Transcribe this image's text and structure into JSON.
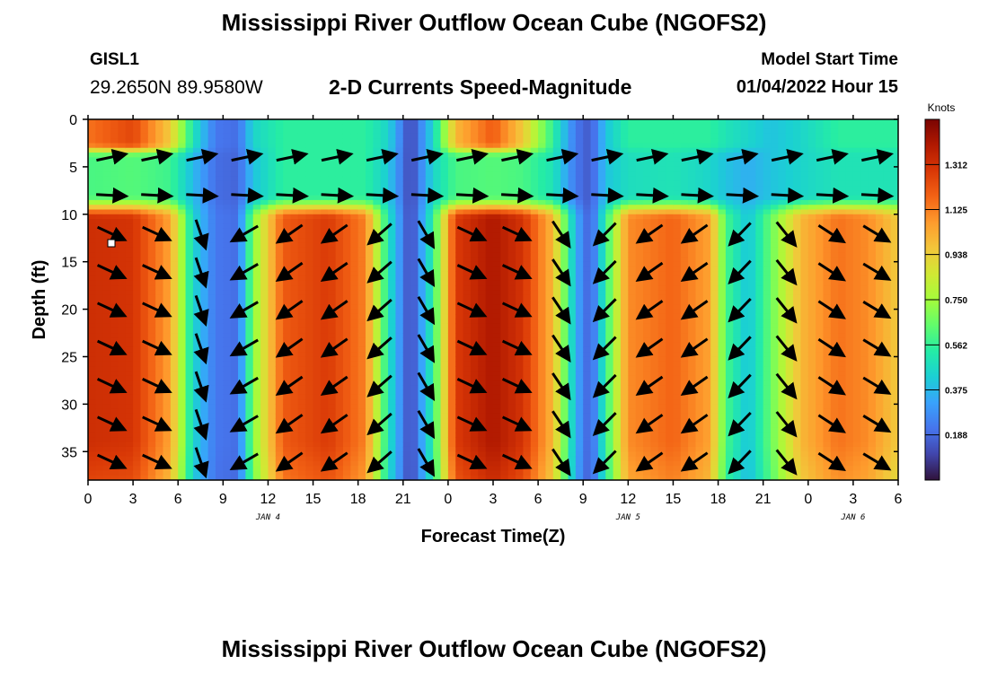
{
  "header": {
    "title": "Mississippi River Outflow Ocean Cube (NGOFS2)",
    "station_id": "GISL1",
    "station_coords": "29.2650N  89.9580W",
    "model_start_label": "Model Start Time",
    "model_start_value": "01/04/2022 Hour 15"
  },
  "footer": {
    "title": "Mississippi River Outflow Ocean Cube (NGOFS2)"
  },
  "colors": {
    "arrow": "#000000",
    "colormap": [
      "#30123b",
      "#4145ab",
      "#4675ed",
      "#39a2fc",
      "#1bcfd4",
      "#24eca6",
      "#61fc6c",
      "#a4fc3b",
      "#d1e834",
      "#f3c63a",
      "#fe9b2d",
      "#f36315",
      "#d93806",
      "#b11901",
      "#7a0402"
    ]
  },
  "chart_data": {
    "type": "heatmap",
    "title": "2-D Currents Speed-Magnitude",
    "xlabel": "Forecast Time(Z)",
    "ylabel": "Depth (ft)",
    "colorbar_label": "Knots",
    "x_ticks": [
      "0",
      "3",
      "6",
      "9",
      "12",
      "15",
      "18",
      "21",
      "0",
      "3",
      "6",
      "9",
      "12",
      "15",
      "18",
      "21",
      "0",
      "3",
      "6"
    ],
    "x_range_hours": [
      0,
      54
    ],
    "date_labels": [
      {
        "text": "JAN 4",
        "hour": 12
      },
      {
        "text": "JAN 5",
        "hour": 36
      },
      {
        "text": "JAN 6",
        "hour": 51
      }
    ],
    "ylim": [
      0,
      38
    ],
    "y_inverted": true,
    "y_ticks": [
      0,
      5,
      10,
      15,
      20,
      25,
      30,
      35
    ],
    "colorbar_range": [
      0.0,
      1.5
    ],
    "colorbar_ticks": [
      "0.188",
      "0.375",
      "0.562",
      "0.750",
      "0.938",
      "1.125",
      "1.312"
    ],
    "vector_rows_depth_ft": [
      4,
      8,
      12,
      16,
      20,
      24,
      28,
      32,
      36
    ],
    "vector_columns_hour": [
      0,
      3,
      6,
      9,
      12,
      15,
      18,
      21,
      24,
      27,
      30,
      33,
      36,
      39,
      42,
      45,
      48,
      51
    ],
    "speed_profile": {
      "hours": [
        0,
        3,
        5.5,
        7,
        8.5,
        10,
        11,
        13,
        16,
        18.5,
        20,
        21.5,
        23,
        24.5,
        27,
        29,
        31,
        32.5,
        33.5,
        34.5,
        36,
        39,
        41.5,
        42.5,
        44,
        45.5,
        47.5,
        50,
        52,
        54
      ],
      "deep_layer_knots": [
        1.32,
        1.3,
        1.05,
        0.45,
        0.22,
        0.2,
        0.7,
        1.2,
        1.28,
        1.12,
        0.5,
        0.1,
        0.55,
        1.28,
        1.4,
        1.3,
        1.0,
        0.35,
        0.15,
        0.55,
        1.1,
        1.18,
        1.05,
        0.6,
        0.4,
        0.65,
        1.0,
        1.15,
        1.1,
        0.95
      ],
      "surface_layer_knots": [
        1.15,
        1.25,
        0.95,
        0.5,
        0.22,
        0.2,
        0.45,
        0.55,
        0.55,
        0.55,
        0.45,
        0.1,
        0.45,
        1.0,
        1.2,
        0.95,
        0.55,
        0.22,
        0.15,
        0.4,
        0.55,
        0.55,
        0.55,
        0.5,
        0.45,
        0.4,
        0.45,
        0.55,
        0.55,
        0.55
      ],
      "mid_layer_knots": [
        0.6,
        0.62,
        0.58,
        0.38,
        0.2,
        0.18,
        0.4,
        0.55,
        0.55,
        0.55,
        0.42,
        0.1,
        0.45,
        0.6,
        0.62,
        0.6,
        0.5,
        0.22,
        0.15,
        0.4,
        0.48,
        0.5,
        0.45,
        0.4,
        0.35,
        0.4,
        0.45,
        0.5,
        0.5,
        0.5
      ]
    },
    "direction_profile": {
      "hours": [
        0,
        5,
        7,
        9,
        10.5,
        12,
        19,
        21,
        22.5,
        24,
        29,
        31,
        33,
        34.5,
        36,
        43,
        45,
        47,
        54
      ],
      "deep_angle_deg": [
        -25,
        -25,
        -60,
        -105,
        -150,
        -145,
        -145,
        -120,
        -60,
        -25,
        -25,
        -45,
        -90,
        -135,
        -145,
        -145,
        -100,
        -35,
        -30
      ]
    }
  }
}
